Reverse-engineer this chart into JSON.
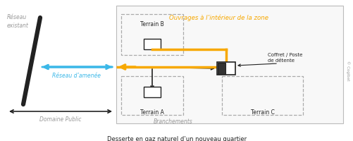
{
  "title": "Desserte en gaz naturel d’un nouveau quartier",
  "orange_label": "Ouvrages à l’intérieur de la zone",
  "reseau_existant": "Réseau\nexistant",
  "reseau_amenee": "Réseau d’amenée",
  "domaine_public": "Domaine Public",
  "terrain_a": "Terrain A",
  "terrain_b": "Terrain B",
  "terrain_c": "Terrain C",
  "branchements": "Branchements",
  "coffret": "Coffret / Poste\nde détente",
  "cogibat": "© Cogibat",
  "orange": "#f7a800",
  "blue": "#3bb8e8",
  "black": "#222222",
  "gray": "#999999",
  "dashed_gray": "#aaaaaa",
  "bg": "#ffffff"
}
